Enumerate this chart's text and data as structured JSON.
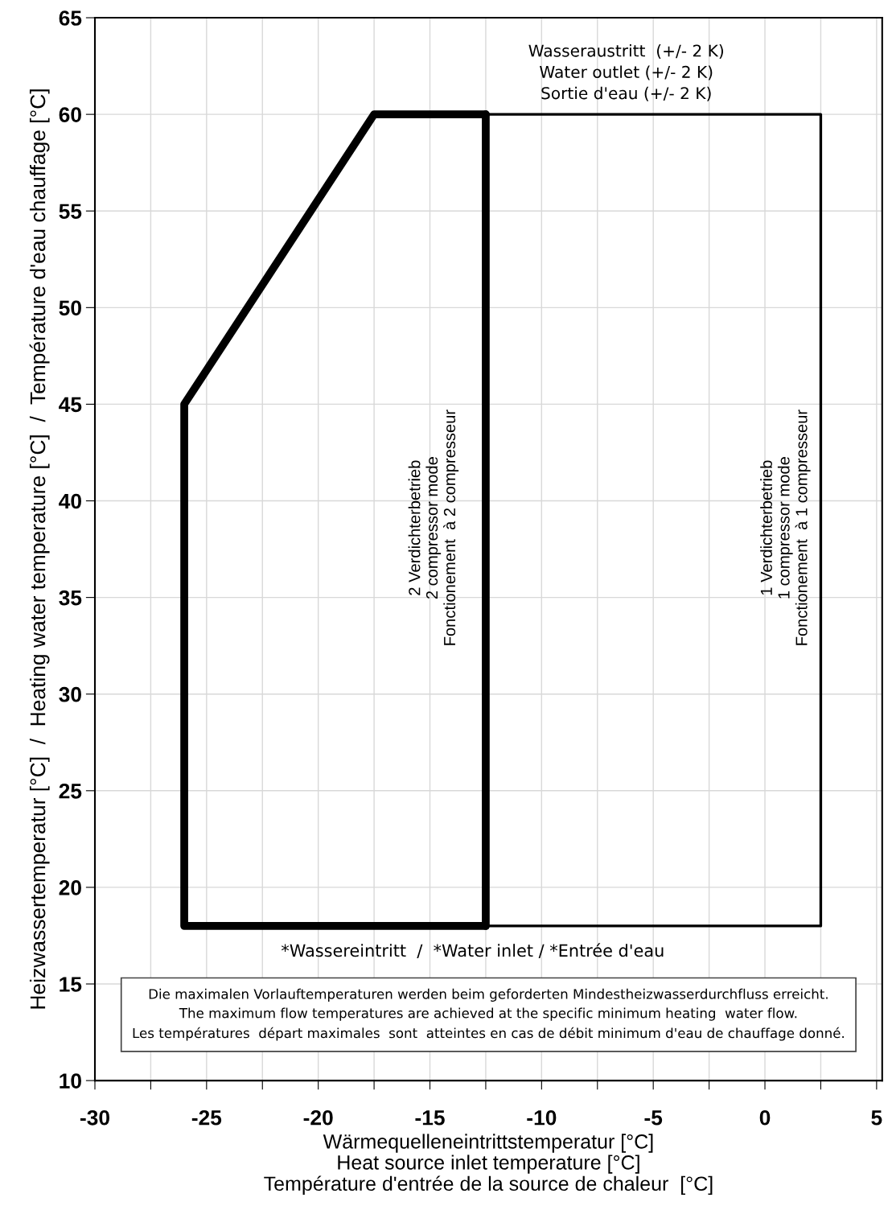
{
  "chart_data": {
    "type": "line",
    "xlabel": "Wärmequelleneintrittstemperatur [°C]\nHeat source inlet temperature [°C]\nTempérature d'entrée de la source de chaleur  [°C]",
    "ylabel": "Heizwassertemperatur [°C]  /  Heating water temperature [°C]  /  Température d'eau chauffage [°C]",
    "series": [
      {
        "color": "#000000",
        "x": [
          -12.5,
          -26,
          -26,
          -17.5,
          -12.5
        ],
        "values": [
          18,
          18,
          45,
          60,
          60
        ]
      },
      {
        "color": "#000000",
        "x": [
          -12.5,
          -12.5
        ],
        "values": [
          60,
          18
        ]
      },
      {
        "color": "#000000",
        "x": [
          -12.5,
          2.5,
          2.5,
          -12.5
        ],
        "values": [
          18,
          18,
          60,
          60
        ]
      }
    ],
    "xlim": [
      -30,
      5.25
    ],
    "ylim": [
      10,
      65
    ],
    "xticks": [
      -30,
      {
        "value": -27.5,
        "label": null
      },
      -25,
      {
        "value": -22.5,
        "label": null
      },
      -20,
      {
        "value": -17.5,
        "label": null
      },
      -15,
      {
        "value": -12.5,
        "label": null
      },
      -10,
      {
        "value": -7.5,
        "label": null
      },
      -5,
      {
        "value": -2.5,
        "label": null
      },
      0,
      {
        "value": 2.5,
        "label": null
      },
      5
    ],
    "yticks": [
      10,
      15,
      20,
      25,
      30,
      35,
      40,
      45,
      50,
      55,
      60,
      65
    ],
    "grid": true,
    "legend": false,
    "marker": "none",
    "line_style": "solid",
    "annotations": [
      "Wasseraustritt  (+/- 2 K)\nWater outlet (+/- 2 K)\nSortie d'eau (+/- 2 K)",
      "2 Verdichterbetrieb\n2 compressor mode\nFonctionement  à 2 compresseur",
      "1 Verdichterbetrieb\n1 compressor mode\nFonctionement  à 1 compresseur",
      "*Wassereintritt  /  *Water inlet / *Entrée d'eau",
      "Die maximalen Vorlauftemperaturen werden beim geforderten Mindestheizwasserdurchfluss erreicht.\nThe maximum flow temperatures are achieved at the specific minimum heating  water flow.\nLes températures  départ maximales  sont  atteintes en cas de débit minimum d'eau de chauffage donné."
    ]
  }
}
